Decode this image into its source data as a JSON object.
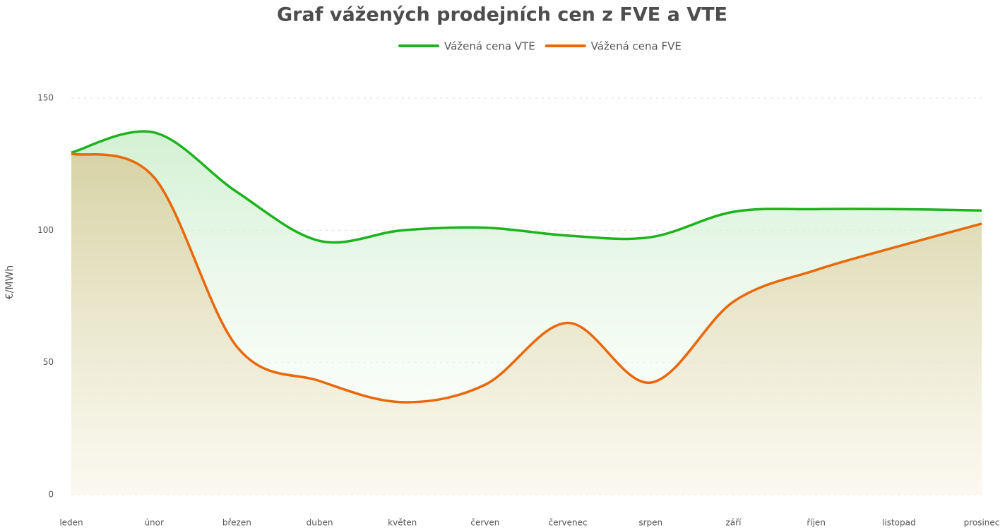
{
  "chart_data": {
    "type": "line",
    "title": "Graf vážených prodejních cen z FVE a VTE",
    "y_label": "€/MWh",
    "categories": [
      "leden",
      "únor",
      "březen",
      "duben",
      "květen",
      "červen",
      "červenec",
      "srpen",
      "září",
      "říjen",
      "listopad",
      "prosinec"
    ],
    "series": [
      {
        "name": "Vážená cena VTE",
        "color": "#1db31d",
        "area_color": "#c8edc8",
        "values": [
          129.4,
          137,
          114.5,
          96,
          100,
          101,
          98,
          97.4,
          107,
          108,
          108,
          107.5
        ]
      },
      {
        "name": "Vážená cena FVE",
        "color": "#e8680a",
        "area_color": "#d8cfa0",
        "values": [
          129,
          120,
          56,
          43,
          35,
          41.6,
          65,
          42.4,
          73,
          85,
          94,
          102.5
        ]
      }
    ],
    "ylim": [
      0,
      150
    ],
    "yticks": [
      0,
      50,
      100,
      150
    ],
    "grid": true,
    "legend": "top"
  }
}
